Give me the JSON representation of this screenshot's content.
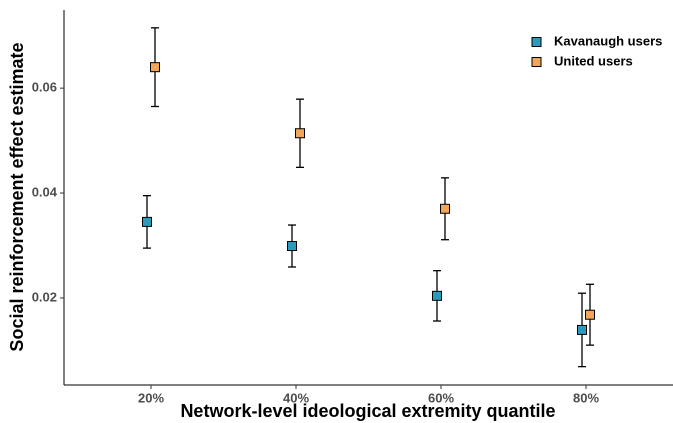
{
  "chart_data": {
    "type": "errorbar",
    "x_label": "Network-level ideological extremity quantile",
    "y_label": "Social reinforcement effect estimate",
    "categories": [
      "20%",
      "40%",
      "60%",
      "80%"
    ],
    "series": [
      {
        "name": "Kavanaugh users",
        "color": "#2a9bbd",
        "values": [
          0.0345,
          0.0299,
          0.0204,
          0.0139
        ],
        "errors": [
          0.005,
          0.004,
          0.0048,
          0.007
        ]
      },
      {
        "name": "United users",
        "color": "#f2a65a",
        "values": [
          0.064,
          0.0514,
          0.037,
          0.0168
        ],
        "errors": [
          0.0075,
          0.0065,
          0.0059,
          0.0058
        ]
      }
    ],
    "ylim": [
      0.0034,
      0.0749
    ],
    "yticks": [
      0.02,
      0.04,
      0.06
    ],
    "grid": false,
    "legend": "top-right"
  }
}
